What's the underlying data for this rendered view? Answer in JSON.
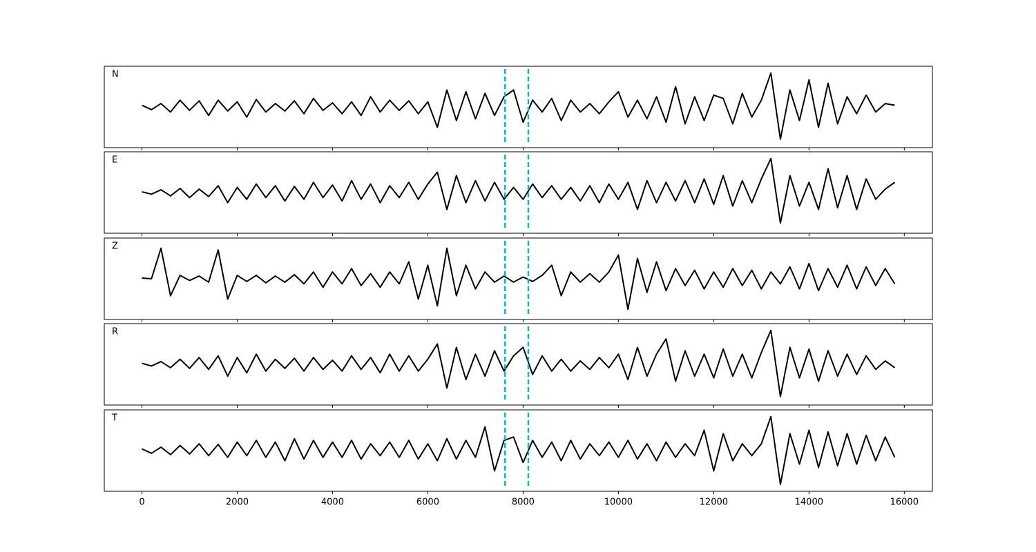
{
  "chart_data": [
    {
      "type": "line",
      "label": "N",
      "color": "#000000",
      "xlim": [
        -790,
        16590
      ],
      "ylim": [
        -1.2,
        1.2
      ],
      "xticks": [
        0,
        2000,
        4000,
        6000,
        8000,
        10000,
        12000,
        14000,
        16000
      ],
      "vlines": [
        7620,
        8110
      ],
      "vline_color": "#00bfbf",
      "x": [
        0,
        200,
        400,
        600,
        800,
        1000,
        1200,
        1400,
        1600,
        1800,
        2000,
        2200,
        2400,
        2600,
        2800,
        3000,
        3200,
        3400,
        3600,
        3800,
        4000,
        4200,
        4400,
        4600,
        4800,
        5000,
        5200,
        5400,
        5600,
        5800,
        6000,
        6200,
        6400,
        6600,
        6800,
        7000,
        7200,
        7400,
        7600,
        7800,
        8000,
        8200,
        8400,
        8600,
        8800,
        9000,
        9200,
        9400,
        9600,
        9800,
        10000,
        10200,
        10400,
        10600,
        10800,
        11000,
        11200,
        11400,
        11600,
        11800,
        12000,
        12200,
        12400,
        12600,
        12800,
        13000,
        13200,
        13400,
        13600,
        13800,
        14000,
        14200,
        14400,
        14600,
        14800,
        15000,
        15200,
        15400,
        15600,
        15800
      ],
      "values": [
        0.05,
        -0.08,
        0.1,
        -0.15,
        0.2,
        -0.1,
        0.18,
        -0.25,
        0.2,
        -0.12,
        0.15,
        -0.3,
        0.22,
        -0.15,
        0.1,
        -0.12,
        0.18,
        -0.2,
        0.25,
        -0.1,
        0.12,
        -0.2,
        0.15,
        -0.25,
        0.3,
        -0.15,
        0.2,
        -0.1,
        0.18,
        -0.2,
        0.15,
        -0.6,
        0.5,
        -0.4,
        0.45,
        -0.35,
        0.4,
        -0.25,
        0.3,
        0.5,
        -0.45,
        0.2,
        -0.15,
        0.25,
        -0.4,
        0.2,
        -0.15,
        0.1,
        -0.2,
        0.15,
        0.45,
        -0.3,
        0.2,
        -0.35,
        0.3,
        -0.45,
        0.6,
        -0.5,
        0.3,
        -0.4,
        0.35,
        0.25,
        -0.5,
        0.4,
        -0.3,
        0.2,
        1.0,
        -0.95,
        0.5,
        -0.4,
        0.8,
        -0.6,
        0.7,
        -0.5,
        0.3,
        -0.2,
        0.35,
        -0.15,
        0.1,
        0.05
      ]
    },
    {
      "type": "line",
      "label": "E",
      "color": "#000000",
      "xlim": [
        -790,
        16590
      ],
      "ylim": [
        -1.2,
        1.2
      ],
      "xticks": [
        0,
        2000,
        4000,
        6000,
        8000,
        10000,
        12000,
        14000,
        16000
      ],
      "vlines": [
        7620,
        8110
      ],
      "vline_color": "#00bfbf",
      "x": [
        0,
        200,
        400,
        600,
        800,
        1000,
        1200,
        1400,
        1600,
        1800,
        2000,
        2200,
        2400,
        2600,
        2800,
        3000,
        3200,
        3400,
        3600,
        3800,
        4000,
        4200,
        4400,
        4600,
        4800,
        5000,
        5200,
        5400,
        5600,
        5800,
        6000,
        6200,
        6400,
        6600,
        6800,
        7000,
        7200,
        7400,
        7600,
        7800,
        8000,
        8200,
        8400,
        8600,
        8800,
        9000,
        9200,
        9400,
        9600,
        9800,
        10000,
        10200,
        10400,
        10600,
        10800,
        11000,
        11200,
        11400,
        11600,
        11800,
        12000,
        12200,
        12400,
        12600,
        12800,
        13000,
        13200,
        13400,
        13600,
        13800,
        14000,
        14200,
        14400,
        14600,
        14800,
        15000,
        15200,
        15400,
        15600,
        15800
      ],
      "values": [
        0.02,
        -0.05,
        0.08,
        -0.1,
        0.12,
        -0.15,
        0.1,
        -0.12,
        0.2,
        -0.3,
        0.15,
        -0.2,
        0.25,
        -0.15,
        0.2,
        -0.25,
        0.18,
        -0.2,
        0.3,
        -0.15,
        0.22,
        -0.25,
        0.35,
        -0.2,
        0.25,
        -0.3,
        0.2,
        -0.15,
        0.3,
        -0.2,
        0.25,
        0.6,
        -0.5,
        0.5,
        -0.3,
        0.35,
        -0.25,
        0.3,
        -0.2,
        0.15,
        -0.2,
        0.25,
        -0.15,
        0.2,
        -0.2,
        0.15,
        -0.25,
        0.2,
        -0.3,
        0.25,
        -0.2,
        0.3,
        -0.5,
        0.35,
        -0.3,
        0.3,
        -0.25,
        0.35,
        -0.3,
        0.4,
        -0.35,
        0.5,
        -0.4,
        0.35,
        -0.3,
        0.4,
        1.0,
        -0.9,
        0.5,
        -0.4,
        0.3,
        -0.5,
        0.7,
        -0.45,
        0.5,
        -0.5,
        0.4,
        -0.2,
        0.1,
        0.3
      ]
    },
    {
      "type": "line",
      "label": "Z",
      "color": "#000000",
      "xlim": [
        -790,
        16590
      ],
      "ylim": [
        -1.2,
        1.2
      ],
      "xticks": [
        0,
        2000,
        4000,
        6000,
        8000,
        10000,
        12000,
        14000,
        16000
      ],
      "vlines": [
        7620,
        8110
      ],
      "vline_color": "#00bfbf",
      "x": [
        0,
        200,
        400,
        600,
        800,
        1000,
        1200,
        1400,
        1600,
        1800,
        2000,
        2200,
        2400,
        2600,
        2800,
        3000,
        3200,
        3400,
        3600,
        3800,
        4000,
        4200,
        4400,
        4600,
        4800,
        5000,
        5200,
        5400,
        5600,
        5800,
        6000,
        6200,
        6400,
        6600,
        6800,
        7000,
        7200,
        7400,
        7600,
        7800,
        8000,
        8200,
        8400,
        8600,
        8800,
        9000,
        9200,
        9400,
        9600,
        9800,
        10000,
        10200,
        10400,
        10600,
        10800,
        11000,
        11200,
        11400,
        11600,
        11800,
        12000,
        12200,
        12400,
        12600,
        12800,
        13000,
        13200,
        13400,
        13600,
        13800,
        14000,
        14200,
        14400,
        14600,
        14800,
        15000,
        15200,
        15400,
        15600,
        15800
      ],
      "values": [
        0.02,
        0.0,
        0.9,
        -0.5,
        0.1,
        -0.05,
        0.08,
        -0.1,
        0.85,
        -0.6,
        0.1,
        -0.08,
        0.1,
        -0.12,
        0.08,
        -0.1,
        0.12,
        -0.15,
        0.2,
        -0.25,
        0.2,
        -0.15,
        0.3,
        -0.2,
        0.15,
        -0.25,
        0.2,
        -0.15,
        0.5,
        -0.6,
        0.4,
        -0.8,
        0.9,
        -0.5,
        0.4,
        -0.3,
        0.2,
        -0.1,
        0.08,
        -0.1,
        0.05,
        -0.08,
        0.1,
        0.4,
        -0.5,
        0.2,
        -0.1,
        0.15,
        -0.1,
        0.2,
        0.7,
        -0.9,
        0.6,
        -0.4,
        0.5,
        -0.35,
        0.3,
        -0.2,
        0.25,
        -0.3,
        0.2,
        -0.25,
        0.3,
        -0.2,
        0.25,
        -0.3,
        0.2,
        -0.15,
        0.35,
        -0.3,
        0.45,
        -0.35,
        0.3,
        -0.25,
        0.4,
        -0.3,
        0.35,
        -0.2,
        0.3,
        -0.15
      ]
    },
    {
      "type": "line",
      "label": "R",
      "color": "#000000",
      "xlim": [
        -790,
        16590
      ],
      "ylim": [
        -1.2,
        1.2
      ],
      "xticks": [
        0,
        2000,
        4000,
        6000,
        8000,
        10000,
        12000,
        14000,
        16000
      ],
      "vlines": [
        7620,
        8110
      ],
      "vline_color": "#00bfbf",
      "x": [
        0,
        200,
        400,
        600,
        800,
        1000,
        1200,
        1400,
        1600,
        1800,
        2000,
        2200,
        2400,
        2600,
        2800,
        3000,
        3200,
        3400,
        3600,
        3800,
        4000,
        4200,
        4400,
        4600,
        4800,
        5000,
        5200,
        5400,
        5600,
        5800,
        6000,
        6200,
        6400,
        6600,
        6800,
        7000,
        7200,
        7400,
        7600,
        7800,
        8000,
        8200,
        8400,
        8600,
        8800,
        9000,
        9200,
        9400,
        9600,
        9800,
        10000,
        10200,
        10400,
        10600,
        10800,
        11000,
        11200,
        11400,
        11600,
        11800,
        12000,
        12200,
        12400,
        12600,
        12800,
        13000,
        13200,
        13400,
        13600,
        13800,
        14000,
        14200,
        14400,
        14600,
        14800,
        15000,
        15200,
        15400,
        15600,
        15800
      ],
      "values": [
        0.03,
        -0.05,
        0.08,
        -0.1,
        0.15,
        -0.12,
        0.2,
        -0.15,
        0.25,
        -0.35,
        0.2,
        -0.25,
        0.3,
        -0.2,
        0.15,
        -0.12,
        0.18,
        -0.2,
        0.2,
        -0.15,
        0.12,
        -0.2,
        0.25,
        -0.15,
        0.2,
        -0.25,
        0.3,
        -0.2,
        0.25,
        -0.2,
        0.15,
        0.6,
        -0.7,
        0.5,
        -0.45,
        0.3,
        -0.35,
        0.4,
        -0.2,
        0.25,
        0.5,
        -0.3,
        0.25,
        -0.2,
        0.15,
        -0.2,
        0.1,
        -0.15,
        0.2,
        -0.1,
        0.3,
        -0.45,
        0.5,
        -0.35,
        0.3,
        0.75,
        -0.5,
        0.4,
        -0.35,
        0.3,
        -0.4,
        0.45,
        -0.35,
        0.3,
        -0.4,
        0.35,
        1.0,
        -0.95,
        0.5,
        -0.4,
        0.45,
        -0.5,
        0.4,
        -0.35,
        0.3,
        -0.3,
        0.25,
        -0.15,
        0.1,
        -0.1
      ]
    },
    {
      "type": "line",
      "label": "T",
      "color": "#000000",
      "xlim": [
        -790,
        16590
      ],
      "ylim": [
        -1.2,
        1.2
      ],
      "xticks": [
        0,
        2000,
        4000,
        6000,
        8000,
        10000,
        12000,
        14000,
        16000
      ],
      "vlines": [
        7620,
        8110
      ],
      "vline_color": "#00bfbf",
      "x": [
        0,
        200,
        400,
        600,
        800,
        1000,
        1200,
        1400,
        1600,
        1800,
        2000,
        2200,
        2400,
        2600,
        2800,
        3000,
        3200,
        3400,
        3600,
        3800,
        4000,
        4200,
        4400,
        4600,
        4800,
        5000,
        5200,
        5400,
        5600,
        5800,
        6000,
        6200,
        6400,
        6600,
        6800,
        7000,
        7200,
        7400,
        7600,
        7800,
        8000,
        8200,
        8400,
        8600,
        8800,
        9000,
        9200,
        9400,
        9600,
        9800,
        10000,
        10200,
        10400,
        10600,
        10800,
        11000,
        11200,
        11400,
        11600,
        11800,
        12000,
        12200,
        12400,
        12600,
        12800,
        13000,
        13200,
        13400,
        13600,
        13800,
        14000,
        14200,
        14400,
        14600,
        14800,
        15000,
        15200,
        15400,
        15600,
        15800
      ],
      "values": [
        0.05,
        -0.08,
        0.1,
        -0.12,
        0.15,
        -0.1,
        0.2,
        -0.15,
        0.18,
        -0.2,
        0.25,
        -0.15,
        0.3,
        -0.2,
        0.25,
        -0.3,
        0.35,
        -0.25,
        0.3,
        -0.2,
        0.25,
        -0.2,
        0.3,
        -0.25,
        0.2,
        -0.15,
        0.25,
        -0.2,
        0.3,
        -0.25,
        0.2,
        -0.3,
        0.35,
        -0.25,
        0.3,
        -0.2,
        0.7,
        -0.6,
        0.3,
        0.4,
        -0.35,
        0.3,
        -0.2,
        0.25,
        -0.3,
        0.3,
        -0.25,
        0.2,
        -0.15,
        0.25,
        -0.2,
        0.3,
        -0.25,
        0.2,
        -0.3,
        0.25,
        -0.2,
        0.2,
        -0.15,
        0.6,
        -0.6,
        0.5,
        -0.3,
        0.2,
        -0.15,
        0.2,
        1.0,
        -1.0,
        0.5,
        -0.4,
        0.6,
        -0.5,
        0.55,
        -0.45,
        0.5,
        -0.4,
        0.45,
        -0.3,
        0.4,
        -0.2
      ]
    }
  ]
}
